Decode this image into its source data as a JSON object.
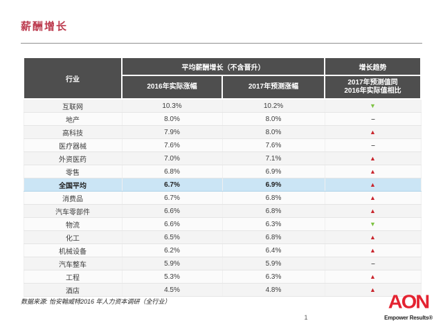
{
  "slide": {
    "title": "薪酬增长",
    "footnote": "数据来源: 怡安翰威特2016 年人力资本调研（全行业）",
    "page_number": "1",
    "logo_text": "AON",
    "logo_tagline": "Empower Results®"
  },
  "table": {
    "headers": {
      "industry": "行业",
      "group": "平均薪酬增长（不含晋升）",
      "col_2016": "2016年实际涨幅",
      "col_2017": "2017年预测涨幅",
      "trend_group": "增长趋势",
      "trend_sub_line1": "2017年预测值同",
      "trend_sub_line2": "2016年实际值相比"
    },
    "trend_icons": {
      "up": "▲",
      "down": "▼",
      "flat": "–"
    },
    "rows": [
      {
        "industry": "互联网",
        "actual_2016": "10.3%",
        "forecast_2017": "10.2%",
        "trend": "down",
        "highlight": false
      },
      {
        "industry": "地产",
        "actual_2016": "8.0%",
        "forecast_2017": "8.0%",
        "trend": "flat",
        "highlight": false
      },
      {
        "industry": "高科技",
        "actual_2016": "7.9%",
        "forecast_2017": "8.0%",
        "trend": "up",
        "highlight": false
      },
      {
        "industry": "医疗器械",
        "actual_2016": "7.6%",
        "forecast_2017": "7.6%",
        "trend": "flat",
        "highlight": false
      },
      {
        "industry": "外资医药",
        "actual_2016": "7.0%",
        "forecast_2017": "7.1%",
        "trend": "up",
        "highlight": false
      },
      {
        "industry": "零售",
        "actual_2016": "6.8%",
        "forecast_2017": "6.9%",
        "trend": "up",
        "highlight": false
      },
      {
        "industry": "全国平均",
        "actual_2016": "6.7%",
        "forecast_2017": "6.9%",
        "trend": "up",
        "highlight": true
      },
      {
        "industry": "消费品",
        "actual_2016": "6.7%",
        "forecast_2017": "6.8%",
        "trend": "up",
        "highlight": false
      },
      {
        "industry": "汽车零部件",
        "actual_2016": "6.6%",
        "forecast_2017": "6.8%",
        "trend": "up",
        "highlight": false
      },
      {
        "industry": "物流",
        "actual_2016": "6.6%",
        "forecast_2017": "6.3%",
        "trend": "down",
        "highlight": false
      },
      {
        "industry": "化工",
        "actual_2016": "6.5%",
        "forecast_2017": "6.8%",
        "trend": "up",
        "highlight": false
      },
      {
        "industry": "机械设备",
        "actual_2016": "6.2%",
        "forecast_2017": "6.4%",
        "trend": "up",
        "highlight": false
      },
      {
        "industry": "汽车整车",
        "actual_2016": "5.9%",
        "forecast_2017": "5.9%",
        "trend": "flat",
        "highlight": false
      },
      {
        "industry": "工程",
        "actual_2016": "5.3%",
        "forecast_2017": "6.3%",
        "trend": "up",
        "highlight": false
      },
      {
        "industry": "酒店",
        "actual_2016": "4.5%",
        "forecast_2017": "4.8%",
        "trend": "up",
        "highlight": false
      }
    ]
  },
  "colors": {
    "title_red": "#bc3a4e",
    "header_bg": "#4e4e4e",
    "highlight_blue": "#cbe5f5",
    "trend_up_red": "#c9252d",
    "trend_down_green": "#7dc242",
    "aon_red": "#e42331"
  }
}
